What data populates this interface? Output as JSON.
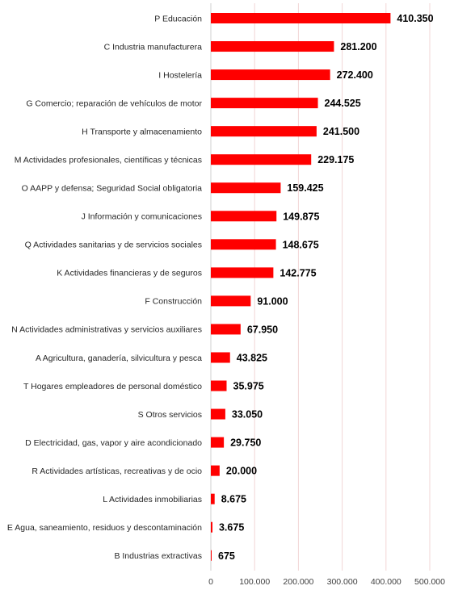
{
  "chart_data": {
    "type": "bar",
    "orientation": "horizontal",
    "categories": [
      "P Educación",
      "C Industria manufacturera",
      "I Hostelería",
      "G Comercio; reparación de vehículos de motor",
      "H Transporte y almacenamiento",
      "M Actividades profesionales, científicas y técnicas",
      "O AAPP y defensa; Seguridad Social obligatoria",
      "J Información y comunicaciones",
      "Q Actividades sanitarias y de servicios sociales",
      "K Actividades financieras y de seguros",
      "F Construcción",
      "N Actividades administrativas y servicios auxiliares",
      "A Agricultura, ganadería, silvicultura y pesca",
      "T Hogares empleadores de personal doméstico",
      "S Otros servicios",
      "D Electricidad, gas, vapor y aire acondicionado",
      "R Actividades artísticas, recreativas y de ocio",
      "L Actividades inmobiliarias",
      "E Agua, saneamiento, residuos y descontaminación",
      "B Industrias extractivas"
    ],
    "values": [
      410350,
      281200,
      272400,
      244525,
      241500,
      229175,
      159425,
      149875,
      148675,
      142775,
      91000,
      67950,
      43825,
      35975,
      33050,
      29750,
      20000,
      8675,
      3675,
      675
    ],
    "value_labels": [
      "410.350",
      "281.200",
      "272.400",
      "244.525",
      "241.500",
      "229.175",
      "159.425",
      "149.875",
      "148.675",
      "142.775",
      "91.000",
      "67.950",
      "43.825",
      "35.975",
      "33.050",
      "29.750",
      "20.000",
      "8.675",
      "3.675",
      "675"
    ],
    "xlim": [
      0,
      500000
    ],
    "xticks": [
      0,
      100000,
      200000,
      300000,
      400000,
      500000
    ],
    "xtick_labels": [
      "0",
      "100.000",
      "200.000",
      "300.000",
      "400.000",
      "500.000"
    ],
    "title": "",
    "xlabel": "",
    "ylabel": "",
    "grid": "vertical",
    "legend": "none",
    "colors": {
      "bar": "#ff0000",
      "grid": "#f2d6d6",
      "axis": "#cfcfcf"
    }
  }
}
